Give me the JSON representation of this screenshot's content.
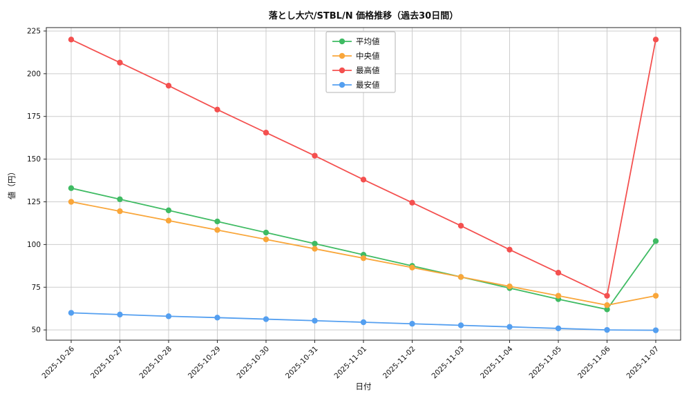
{
  "chart_data": {
    "type": "line",
    "title": "落とし大穴/STBL/N 価格推移（過去30日間）",
    "xlabel": "日付",
    "ylabel": "値（円）",
    "grid": true,
    "grid_color": "#cccccc",
    "axis_color": "#262626",
    "legend_position": "top-center",
    "ylim": [
      44,
      227
    ],
    "yticks": [
      50,
      75,
      100,
      125,
      150,
      175,
      200,
      225
    ],
    "categories": [
      "2025-10-26",
      "2025-10-27",
      "2025-10-28",
      "2025-10-29",
      "2025-10-30",
      "2025-10-31",
      "2025-11-01",
      "2025-11-02",
      "2025-11-03",
      "2025-11-04",
      "2025-11-05",
      "2025-11-06",
      "2025-11-07"
    ],
    "series": [
      {
        "key": "average",
        "name": "平均値",
        "color": "#3fbb63",
        "values": [
          133,
          126.5,
          120,
          113.5,
          107,
          100.5,
          94,
          87.5,
          81,
          74.5,
          68,
          62,
          102
        ]
      },
      {
        "key": "median",
        "name": "中央値",
        "color": "#f9a63a",
        "values": [
          125,
          119.5,
          114,
          108.5,
          103,
          97.5,
          92,
          86.5,
          81,
          75.5,
          70,
          64.5,
          70
        ]
      },
      {
        "key": "max",
        "name": "最高値",
        "color": "#f4504f",
        "values": [
          220,
          206.5,
          193,
          179,
          165.5,
          152,
          138,
          124.5,
          111,
          97,
          83.5,
          70,
          220
        ]
      },
      {
        "key": "min",
        "name": "最安値",
        "color": "#549ff0",
        "values": [
          60,
          59,
          58,
          57.2,
          56.3,
          55.4,
          54.5,
          53.6,
          52.7,
          51.8,
          50.9,
          50,
          49.8
        ]
      }
    ]
  }
}
